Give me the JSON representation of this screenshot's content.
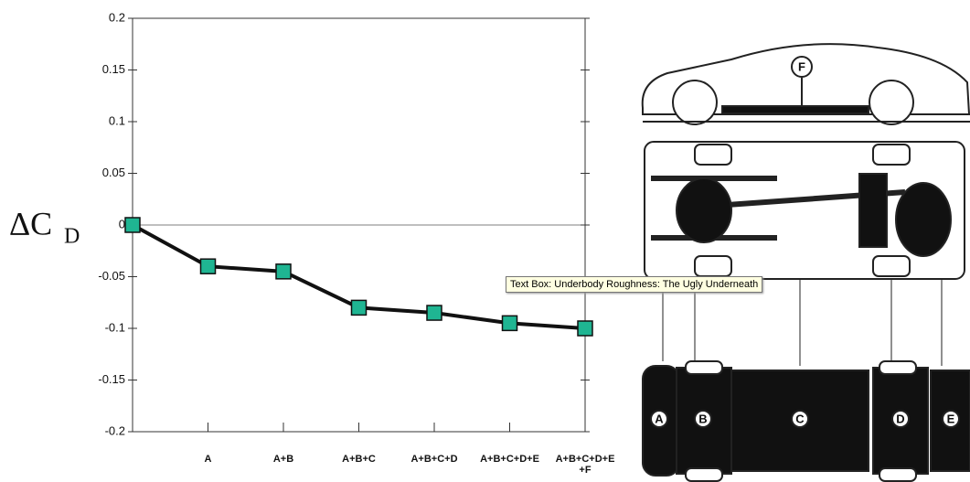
{
  "chart_data": {
    "type": "line",
    "y_label": "ΔC",
    "y_label_sub": "D",
    "categories": [
      null,
      "A",
      "A+B",
      "A+B+C",
      "A+B+C+D",
      "A+B+C+D+E",
      "A+B+C+D+E+F"
    ],
    "values": [
      0,
      -0.04,
      -0.045,
      -0.08,
      -0.085,
      -0.095,
      -0.1
    ],
    "color": "#1fb592",
    "ylim": [
      -0.2,
      0.2
    ],
    "yticks": [
      -0.2,
      -0.15,
      -0.1,
      -0.05,
      0,
      0.05,
      0.1,
      0.15,
      0.2
    ],
    "grid": false
  },
  "diagram": {
    "labels": [
      "F",
      "A",
      "B",
      "C",
      "D",
      "E"
    ]
  },
  "tooltip": "Text Box: Underbody Roughness: The Ugly Underneath"
}
